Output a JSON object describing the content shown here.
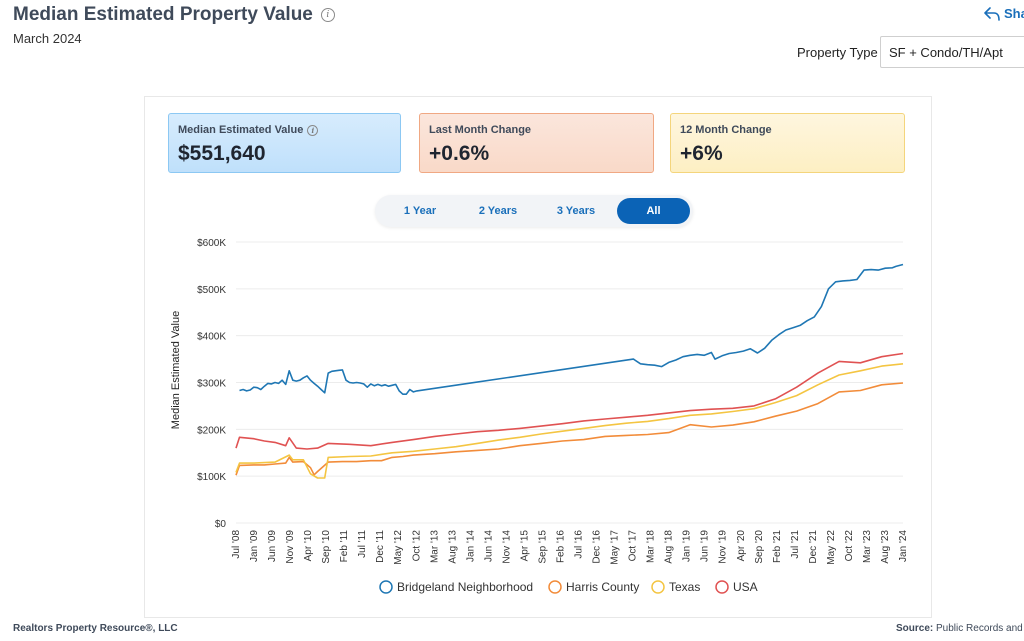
{
  "header": {
    "title": "Median Estimated Property Value",
    "subtitle": "March 2024",
    "share_label": "Sha",
    "property_type_label": "Property Type",
    "property_type_value": "SF + Condo/TH/Apt"
  },
  "stats": [
    {
      "label": "Median Estimated Value",
      "value": "$551,640"
    },
    {
      "label": "Last Month Change",
      "value": "+0.6%"
    },
    {
      "label": "12 Month Change",
      "value": "+6%"
    }
  ],
  "ranges": [
    "1 Year",
    "2 Years",
    "3 Years",
    "All"
  ],
  "active_range": "All",
  "footer": {
    "left": "Realtors Property Resource®, LLC",
    "source_label": "Source:",
    "source_text": "Public Records and"
  },
  "chart_data": {
    "type": "line",
    "ylabel": "Median Estimated Value",
    "ylim": [
      0,
      600000
    ],
    "ytick_values": [
      0,
      100000,
      200000,
      300000,
      400000,
      500000,
      600000
    ],
    "ytick_labels": [
      "$0",
      "$100K",
      "$200K",
      "$300K",
      "$400K",
      "$500K",
      "$600K"
    ],
    "xlim": [
      "2008-07",
      "2024-03"
    ],
    "xtick_labels": [
      "Jul '08",
      "Jan '09",
      "Jun '09",
      "Nov '09",
      "Apr '10",
      "Sep '10",
      "Feb '11",
      "Jul '11",
      "Dec '11",
      "May '12",
      "Oct '12",
      "Mar '13",
      "Aug '13",
      "Jan '14",
      "Jun '14",
      "Nov '14",
      "Apr '15",
      "Sep '15",
      "Feb '16",
      "Jul '16",
      "Dec '16",
      "May '17",
      "Oct '17",
      "Mar '18",
      "Aug '18",
      "Jan '19",
      "Jun '19",
      "Nov '19",
      "Apr '20",
      "Sep '20",
      "Feb '21",
      "Jul '21",
      "Dec '21",
      "May '22",
      "Oct '22",
      "Mar '23",
      "Aug '23",
      "Jan '24"
    ],
    "legend_position": "bottom",
    "series": [
      {
        "name": "Bridgeland Neighborhood",
        "color": "#1f77b4",
        "points": [
          [
            "2008-08",
            283000
          ],
          [
            "2008-09",
            285000
          ],
          [
            "2008-10",
            282000
          ],
          [
            "2008-11",
            284000
          ],
          [
            "2008-12",
            290000
          ],
          [
            "2009-01",
            289000
          ],
          [
            "2009-02",
            285000
          ],
          [
            "2009-03",
            292000
          ],
          [
            "2009-04",
            298000
          ],
          [
            "2009-05",
            297000
          ],
          [
            "2009-06",
            300000
          ],
          [
            "2009-07",
            298000
          ],
          [
            "2009-08",
            305000
          ],
          [
            "2009-09",
            296000
          ],
          [
            "2009-10",
            325000
          ],
          [
            "2009-11",
            305000
          ],
          [
            "2009-12",
            303000
          ],
          [
            "2010-01",
            305000
          ],
          [
            "2010-02",
            310000
          ],
          [
            "2010-03",
            314000
          ],
          [
            "2010-04",
            305000
          ],
          [
            "2010-05",
            298000
          ],
          [
            "2010-06",
            292000
          ],
          [
            "2010-07",
            285000
          ],
          [
            "2010-08",
            278000
          ],
          [
            "2010-09",
            320000
          ],
          [
            "2010-10",
            324000
          ],
          [
            "2010-11",
            325000
          ],
          [
            "2010-12",
            326000
          ],
          [
            "2011-01",
            327000
          ],
          [
            "2011-02",
            305000
          ],
          [
            "2011-03",
            300000
          ],
          [
            "2011-04",
            299000
          ],
          [
            "2011-05",
            300000
          ],
          [
            "2011-06",
            299000
          ],
          [
            "2011-07",
            297000
          ],
          [
            "2011-08",
            290000
          ],
          [
            "2011-09",
            297000
          ],
          [
            "2011-10",
            293000
          ],
          [
            "2011-11",
            296000
          ],
          [
            "2011-12",
            293000
          ],
          [
            "2012-01",
            295000
          ],
          [
            "2012-02",
            292000
          ],
          [
            "2012-03",
            294000
          ],
          [
            "2012-04",
            296000
          ],
          [
            "2012-05",
            282000
          ],
          [
            "2012-06",
            275000
          ],
          [
            "2012-07",
            275000
          ],
          [
            "2012-08",
            285000
          ],
          [
            "2012-09",
            280000
          ],
          [
            "2012-10",
            282000
          ],
          [
            "2017-11",
            350000
          ],
          [
            "2018-01",
            340000
          ],
          [
            "2018-03",
            338000
          ],
          [
            "2018-05",
            337000
          ],
          [
            "2018-07",
            334000
          ],
          [
            "2018-09",
            343000
          ],
          [
            "2018-11",
            348000
          ],
          [
            "2019-01",
            355000
          ],
          [
            "2019-03",
            358000
          ],
          [
            "2019-05",
            360000
          ],
          [
            "2019-07",
            358000
          ],
          [
            "2019-09",
            364000
          ],
          [
            "2019-10",
            350000
          ],
          [
            "2019-12",
            357000
          ],
          [
            "2020-02",
            362000
          ],
          [
            "2020-04",
            364000
          ],
          [
            "2020-06",
            367000
          ],
          [
            "2020-08",
            372000
          ],
          [
            "2020-10",
            363000
          ],
          [
            "2020-12",
            373000
          ],
          [
            "2021-02",
            390000
          ],
          [
            "2021-04",
            402000
          ],
          [
            "2021-06",
            412000
          ],
          [
            "2021-08",
            417000
          ],
          [
            "2021-10",
            422000
          ],
          [
            "2021-12",
            432000
          ],
          [
            "2022-02",
            440000
          ],
          [
            "2022-04",
            462000
          ],
          [
            "2022-06",
            500000
          ],
          [
            "2022-08",
            515000
          ],
          [
            "2022-10",
            517000
          ],
          [
            "2022-12",
            518000
          ],
          [
            "2023-02",
            520000
          ],
          [
            "2023-04",
            540000
          ],
          [
            "2023-06",
            541000
          ],
          [
            "2023-08",
            540000
          ],
          [
            "2023-10",
            544000
          ],
          [
            "2023-12",
            545000
          ],
          [
            "2024-01",
            548000
          ],
          [
            "2024-03",
            552000
          ]
        ]
      },
      {
        "name": "Harris County",
        "color": "#f28c3a",
        "points": [
          [
            "2008-07",
            102000
          ],
          [
            "2008-08",
            123000
          ],
          [
            "2008-12",
            124000
          ],
          [
            "2009-03",
            124000
          ],
          [
            "2009-06",
            126000
          ],
          [
            "2009-09",
            128000
          ],
          [
            "2009-10",
            140000
          ],
          [
            "2009-11",
            130000
          ],
          [
            "2010-02",
            131000
          ],
          [
            "2010-04",
            118000
          ],
          [
            "2010-05",
            103000
          ],
          [
            "2010-06",
            110000
          ],
          [
            "2010-09",
            130000
          ],
          [
            "2011-01",
            131000
          ],
          [
            "2011-05",
            131000
          ],
          [
            "2011-09",
            133000
          ],
          [
            "2011-12",
            133000
          ],
          [
            "2012-03",
            140000
          ],
          [
            "2012-06",
            142000
          ],
          [
            "2012-09",
            145000
          ],
          [
            "2013-03",
            148000
          ],
          [
            "2013-09",
            152000
          ],
          [
            "2014-03",
            155000
          ],
          [
            "2014-09",
            158000
          ],
          [
            "2015-03",
            165000
          ],
          [
            "2015-09",
            170000
          ],
          [
            "2016-03",
            175000
          ],
          [
            "2016-09",
            178000
          ],
          [
            "2017-03",
            185000
          ],
          [
            "2017-09",
            187000
          ],
          [
            "2018-03",
            189000
          ],
          [
            "2018-09",
            193000
          ],
          [
            "2019-03",
            210000
          ],
          [
            "2019-09",
            205000
          ],
          [
            "2020-03",
            209000
          ],
          [
            "2020-09",
            216000
          ],
          [
            "2021-03",
            228000
          ],
          [
            "2021-09",
            239000
          ],
          [
            "2022-03",
            255000
          ],
          [
            "2022-09",
            280000
          ],
          [
            "2023-03",
            283000
          ],
          [
            "2023-09",
            295000
          ],
          [
            "2024-03",
            299000
          ]
        ]
      },
      {
        "name": "Texas",
        "color": "#f4c542",
        "points": [
          [
            "2008-07",
            108000
          ],
          [
            "2008-08",
            128000
          ],
          [
            "2008-12",
            128000
          ],
          [
            "2009-06",
            130000
          ],
          [
            "2009-10",
            145000
          ],
          [
            "2009-11",
            135000
          ],
          [
            "2010-02",
            135000
          ],
          [
            "2010-04",
            105000
          ],
          [
            "2010-06",
            96000
          ],
          [
            "2010-08",
            96000
          ],
          [
            "2010-09",
            140000
          ],
          [
            "2011-03",
            142000
          ],
          [
            "2011-09",
            143000
          ],
          [
            "2012-03",
            150000
          ],
          [
            "2012-09",
            153000
          ],
          [
            "2013-03",
            158000
          ],
          [
            "2013-09",
            163000
          ],
          [
            "2014-03",
            170000
          ],
          [
            "2014-09",
            177000
          ],
          [
            "2015-03",
            183000
          ],
          [
            "2015-09",
            190000
          ],
          [
            "2016-03",
            196000
          ],
          [
            "2016-09",
            202000
          ],
          [
            "2017-03",
            208000
          ],
          [
            "2017-09",
            213000
          ],
          [
            "2018-03",
            217000
          ],
          [
            "2018-09",
            223000
          ],
          [
            "2019-03",
            230000
          ],
          [
            "2019-09",
            233000
          ],
          [
            "2020-03",
            238000
          ],
          [
            "2020-09",
            244000
          ],
          [
            "2021-03",
            257000
          ],
          [
            "2021-09",
            272000
          ],
          [
            "2022-03",
            295000
          ],
          [
            "2022-09",
            316000
          ],
          [
            "2023-03",
            325000
          ],
          [
            "2023-09",
            335000
          ],
          [
            "2024-03",
            340000
          ]
        ]
      },
      {
        "name": "USA",
        "color": "#e05252",
        "points": [
          [
            "2008-07",
            160000
          ],
          [
            "2008-08",
            183000
          ],
          [
            "2008-12",
            180000
          ],
          [
            "2009-03",
            175000
          ],
          [
            "2009-06",
            172000
          ],
          [
            "2009-09",
            165000
          ],
          [
            "2009-10",
            182000
          ],
          [
            "2009-12",
            160000
          ],
          [
            "2010-03",
            158000
          ],
          [
            "2010-06",
            160000
          ],
          [
            "2010-09",
            170000
          ],
          [
            "2011-03",
            168000
          ],
          [
            "2011-09",
            165000
          ],
          [
            "2012-03",
            172000
          ],
          [
            "2012-09",
            178000
          ],
          [
            "2013-03",
            185000
          ],
          [
            "2013-09",
            190000
          ],
          [
            "2014-03",
            195000
          ],
          [
            "2014-09",
            198000
          ],
          [
            "2015-03",
            202000
          ],
          [
            "2015-09",
            207000
          ],
          [
            "2016-03",
            212000
          ],
          [
            "2016-09",
            218000
          ],
          [
            "2017-03",
            222000
          ],
          [
            "2017-09",
            226000
          ],
          [
            "2018-03",
            230000
          ],
          [
            "2018-09",
            235000
          ],
          [
            "2019-03",
            240000
          ],
          [
            "2019-09",
            243000
          ],
          [
            "2020-03",
            245000
          ],
          [
            "2020-09",
            250000
          ],
          [
            "2021-03",
            265000
          ],
          [
            "2021-09",
            290000
          ],
          [
            "2022-03",
            320000
          ],
          [
            "2022-09",
            345000
          ],
          [
            "2023-03",
            342000
          ],
          [
            "2023-09",
            355000
          ],
          [
            "2024-03",
            362000
          ]
        ]
      }
    ]
  }
}
